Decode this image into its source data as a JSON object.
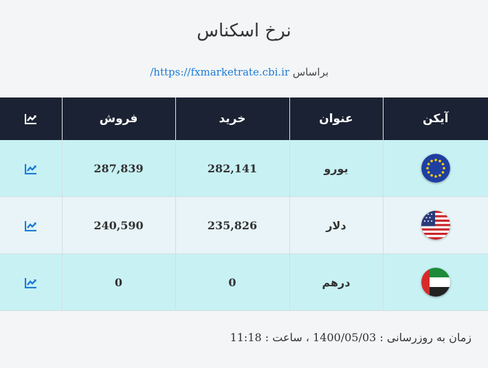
{
  "title": "نرخ اسکناس",
  "source": {
    "prefix": "براساس",
    "link": "https://fxmarketrate.cbi.ir/"
  },
  "table": {
    "headers": {
      "icon": "آیکن",
      "title": "عنوان",
      "buy": "خرید",
      "sell": "فروش"
    },
    "rows": [
      {
        "flag": "eu-flag-icon",
        "name": "یورو",
        "buy": "282,141",
        "sell": "287,839"
      },
      {
        "flag": "us-flag-icon",
        "name": "دلار",
        "buy": "235,826",
        "sell": "240,590"
      },
      {
        "flag": "uae-flag-icon",
        "name": "درهم",
        "buy": "0",
        "sell": "0"
      }
    ]
  },
  "footer": "زمان به روزرسانی : 1400/05/03 ، ساعت : 11:18",
  "colors": {
    "header_bg": "#1b2233",
    "row_cyan": "#c8f1f4",
    "row_light": "#e8f4f7",
    "link": "#1a7bd6"
  }
}
